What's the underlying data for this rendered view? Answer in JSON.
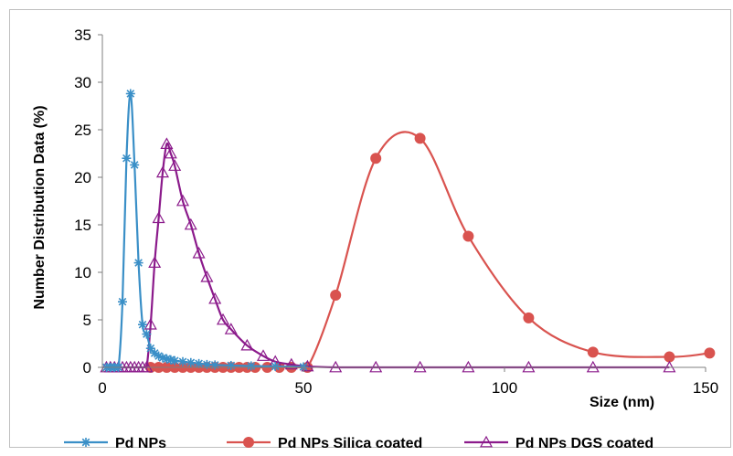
{
  "chart_data": {
    "type": "line",
    "xlabel": "Size (nm)",
    "ylabel": "Number Distribution Data (%)",
    "xlim": [
      0,
      150
    ],
    "ylim": [
      0,
      35
    ],
    "xticks": [
      0,
      50,
      100,
      150
    ],
    "yticks": [
      0,
      5,
      10,
      15,
      20,
      25,
      30,
      35
    ],
    "grid": false,
    "legend_position": "bottom",
    "series": [
      {
        "name": "Pd NPs",
        "color": "#3a8fc7",
        "marker": "asterisk",
        "x": [
          1,
          2,
          3,
          4,
          5,
          6,
          7,
          8,
          9,
          10,
          11,
          12,
          13,
          14,
          15,
          16,
          17,
          18,
          20,
          22,
          24,
          26,
          28,
          32,
          37,
          43,
          50
        ],
        "y": [
          0,
          0,
          0,
          0,
          6.9,
          22.0,
          28.8,
          21.3,
          11.0,
          4.5,
          3.5,
          2.0,
          1.5,
          1.2,
          1.0,
          0.9,
          0.8,
          0.7,
          0.6,
          0.5,
          0.4,
          0.3,
          0.25,
          0.2,
          0.15,
          0.1,
          0.05
        ]
      },
      {
        "name": "Pd NPs Silica coated",
        "color": "#d9534f",
        "marker": "circle",
        "x": [
          12,
          14,
          16,
          18,
          20,
          22,
          24,
          26,
          28,
          30,
          32,
          34,
          36,
          38,
          41,
          44,
          47,
          51,
          58,
          68,
          79,
          91,
          106,
          122,
          141,
          151
        ],
        "y": [
          0,
          0,
          0,
          0,
          0,
          0,
          0,
          0,
          0,
          0,
          0,
          0,
          0,
          0,
          0,
          0,
          0,
          0,
          7.6,
          22.0,
          24.1,
          13.8,
          5.2,
          1.6,
          1.1,
          1.5
        ]
      },
      {
        "name": "Pd NPs DGS coated",
        "color": "#8b1a8b",
        "marker": "triangle",
        "x": [
          1,
          2,
          3,
          4,
          5,
          6,
          7,
          8,
          9,
          10,
          11,
          12,
          13,
          14,
          15,
          16,
          17,
          18,
          20,
          22,
          24,
          26,
          28,
          30,
          32,
          36,
          40,
          43,
          47,
          51,
          58,
          68,
          79,
          91,
          106,
          122,
          141
        ],
        "y": [
          0,
          0,
          0,
          0,
          0,
          0,
          0,
          0,
          0,
          0,
          0,
          4.5,
          11.0,
          15.7,
          20.5,
          23.5,
          22.5,
          21.2,
          17.5,
          15.0,
          12.0,
          9.5,
          7.2,
          5.0,
          4.0,
          2.3,
          1.2,
          0.6,
          0.3,
          0.1,
          0,
          0,
          0,
          0,
          0,
          0,
          0
        ]
      }
    ]
  }
}
